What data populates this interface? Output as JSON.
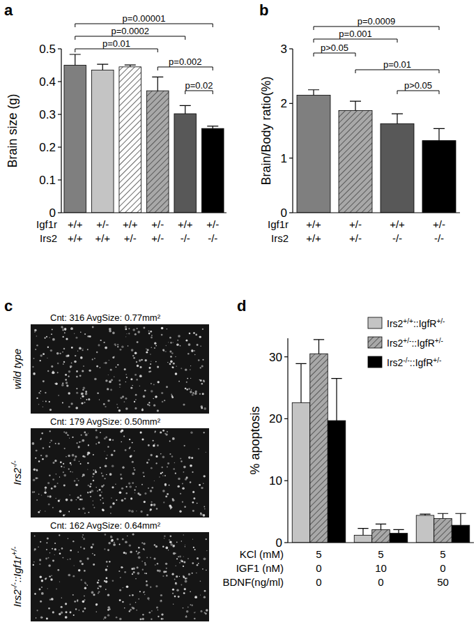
{
  "chart_data": [
    {
      "type": "bar",
      "title": "a",
      "y_label": "Brain size (g)",
      "category_row_labels": [
        "Igf1r",
        "Irs2"
      ],
      "categories": [
        [
          "+/+",
          "+/+"
        ],
        [
          "+/-",
          "+/+"
        ],
        [
          "+/+",
          "+/-"
        ],
        [
          "+/-",
          "+/-"
        ],
        [
          "+/+",
          "-/-"
        ],
        [
          "+/-",
          "-/-"
        ]
      ],
      "values": [
        0.45,
        0.435,
        0.445,
        0.372,
        0.302,
        0.257
      ],
      "errors": [
        0.033,
        0.018,
        0.006,
        0.042,
        0.025,
        0.007
      ],
      "colors": [
        "#7f7f7f",
        "#c4c4c4",
        "#ffffff",
        "#a8a8a8",
        "#585858",
        "#000000"
      ],
      "line_style": [
        "solid",
        "solid",
        "hatched",
        "hatched",
        "solid",
        "solid"
      ],
      "ylim": [
        0,
        0.5
      ],
      "yticks": [
        0,
        0.1,
        0.2,
        0.3,
        0.4,
        0.5
      ],
      "annotations": [
        {
          "label": "p=0.00001",
          "from": 0,
          "to": 5
        },
        {
          "label": "p=0.0002",
          "from": 0,
          "to": 4
        },
        {
          "label": "p=0.01",
          "from": 0,
          "to": 3
        },
        {
          "label": "p=0.002",
          "from": 3,
          "to": 5
        },
        {
          "label": "p=0.02",
          "from": 4,
          "to": 5
        }
      ]
    },
    {
      "type": "bar",
      "title": "b",
      "y_label": "Brain/Body ratio(%)",
      "category_row_labels": [
        "Igf1r",
        "Irs2"
      ],
      "categories": [
        [
          "+/+",
          "+/+"
        ],
        [
          "+/-",
          "+/-"
        ],
        [
          "+/+",
          "-/-"
        ],
        [
          "+/-",
          "-/-"
        ]
      ],
      "values": [
        2.15,
        1.87,
        1.63,
        1.32
      ],
      "errors": [
        0.1,
        0.17,
        0.18,
        0.22
      ],
      "colors": [
        "#7f7f7f",
        "#a8a8a8",
        "#585858",
        "#000000"
      ],
      "line_style": [
        "solid",
        "hatched",
        "solid",
        "solid"
      ],
      "ylim": [
        0,
        3
      ],
      "yticks": [
        0,
        1,
        2,
        3
      ],
      "annotations": [
        {
          "label": "p=0.0009",
          "from": 0,
          "to": 3
        },
        {
          "label": "p=0.001",
          "from": 0,
          "to": 2
        },
        {
          "label": "p>0.05",
          "from": 0,
          "to": 1
        },
        {
          "label": "p=0.01",
          "from": 1,
          "to": 3
        },
        {
          "label": "p>0.05",
          "from": 2,
          "to": 3
        }
      ]
    },
    {
      "type": "bar",
      "title": "d",
      "y_label": "% apoptosis",
      "category_row_labels": [
        "KCl (mM)",
        "IGF1 (nM)",
        "BDNF(ng/ml)"
      ],
      "categories": [
        [
          "5",
          "0",
          "0"
        ],
        [
          "5",
          "10",
          "0"
        ],
        [
          "5",
          "0",
          "50"
        ]
      ],
      "series": [
        {
          "name": "Irs2+/+::IgfR+/-",
          "color": "#c4c4c4",
          "line_style": "solid",
          "values": [
            22.6,
            1.2,
            4.4
          ],
          "errors": [
            6.3,
            1.1,
            0.2
          ]
        },
        {
          "name": "Irs2+/-::IgfR+/-",
          "color": "#a8a8a8",
          "line_style": "hatched",
          "values": [
            30.5,
            2.1,
            3.9
          ],
          "errors": [
            2.3,
            0.9,
            0.8
          ]
        },
        {
          "name": "Irs2-/-::IgfR+/-",
          "color": "#000000",
          "line_style": "solid",
          "values": [
            19.7,
            1.5,
            2.8
          ],
          "errors": [
            6.8,
            0.6,
            1.9
          ]
        }
      ],
      "legend": "upper right",
      "ylim": [
        0,
        33
      ],
      "yticks": [
        0,
        10,
        20,
        30
      ]
    }
  ],
  "panel_c": {
    "title": "c",
    "images": [
      {
        "label": "wild type",
        "caption": "Cnt: 316  AvgSize: 0.77mm²"
      },
      {
        "label": "Irs2-/-",
        "caption": "Cnt: 179  AvgSize: 0.50mm²"
      },
      {
        "label": "Irs2-/-::Igf1r+/-",
        "caption": "Cnt: 162  AvgSize: 0.64mm²"
      }
    ]
  }
}
